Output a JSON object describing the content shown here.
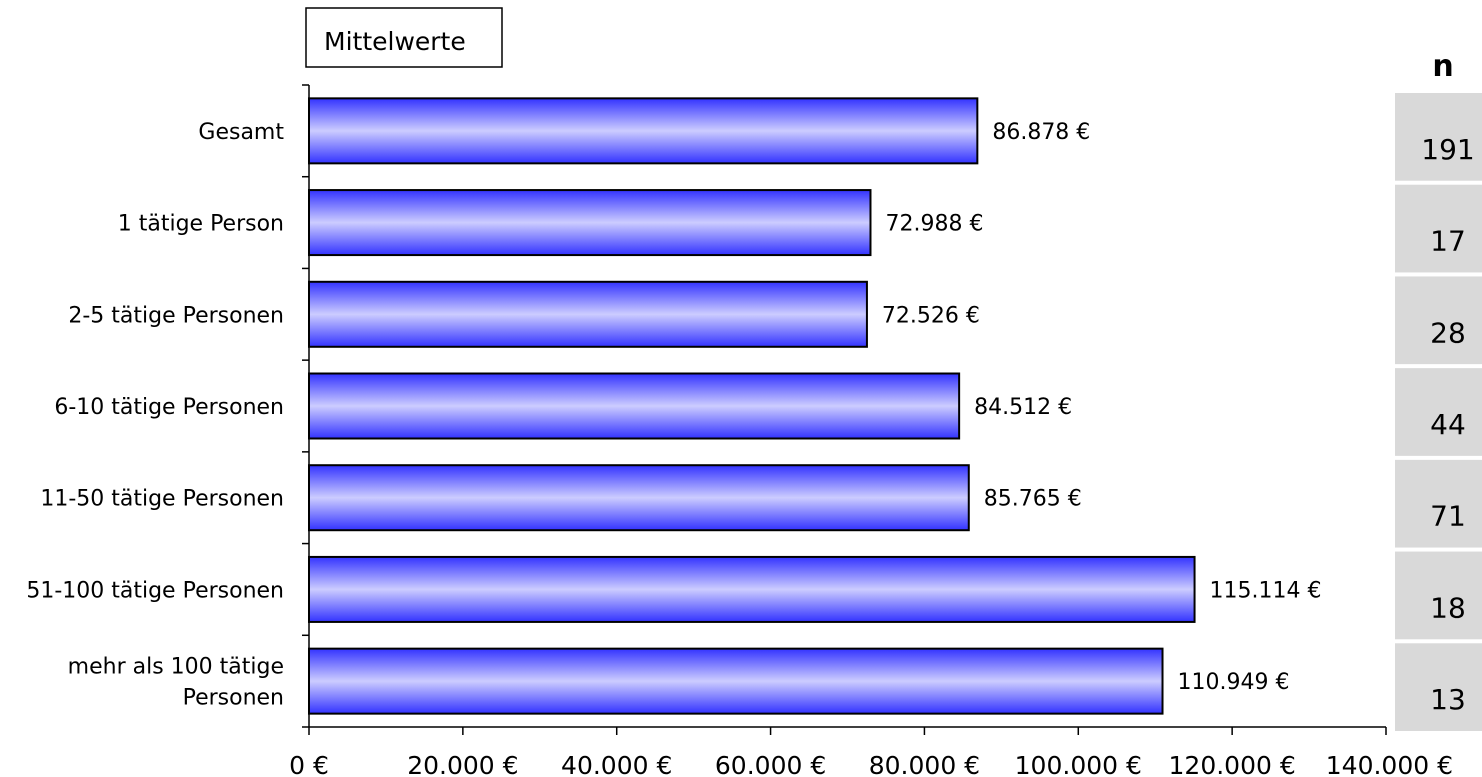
{
  "chart_data": {
    "type": "bar",
    "orientation": "horizontal",
    "box_label": "Mittelwerte",
    "categories": [
      [
        "Gesamt"
      ],
      [
        "1 tätige Person"
      ],
      [
        "2-5 tätige Personen"
      ],
      [
        "6-10 tätige Personen"
      ],
      [
        "11-50 tätige Personen"
      ],
      [
        "51-100 tätige Personen"
      ],
      [
        "mehr als 100 tätige",
        "Personen"
      ]
    ],
    "values": [
      86878,
      72988,
      72526,
      84512,
      85765,
      115114,
      110949
    ],
    "value_labels": [
      "86.878 €",
      "72.988 €",
      "72.526 €",
      "84.512 €",
      "85.765 €",
      "115.114 €",
      "110.949 €"
    ],
    "xlim": [
      0,
      140000
    ],
    "x_ticks": [
      0,
      20000,
      40000,
      60000,
      80000,
      100000,
      120000,
      140000
    ],
    "x_tick_labels": [
      "0 €",
      "20.000 €",
      "40.000 €",
      "60.000 €",
      "80.000 €",
      "100.000 €",
      "120.000 €",
      "140.000 €"
    ],
    "grid": false,
    "bar_color": "#3333ff",
    "bar_highlight_color": "#ccccff",
    "n_column": {
      "header": "n",
      "values": [
        "191",
        "17",
        "28",
        "44",
        "71",
        "18",
        "13"
      ],
      "background": "#d9d9d9"
    }
  }
}
